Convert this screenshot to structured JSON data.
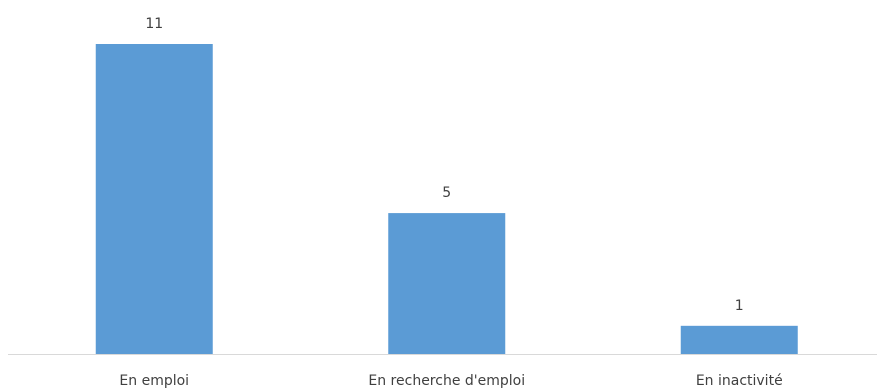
{
  "chart_data": {
    "type": "bar",
    "categories": [
      "En emploi",
      "En recherche d'emploi",
      "En inactivité"
    ],
    "values": [
      11,
      5,
      1
    ],
    "data_labels": [
      "11",
      "5",
      "1"
    ],
    "ylim": [
      0,
      11
    ],
    "grid": false,
    "legend": "none",
    "bar_color": "#5B9BD5",
    "axis_color": "#D9D9D9",
    "text_color": "#404040"
  }
}
